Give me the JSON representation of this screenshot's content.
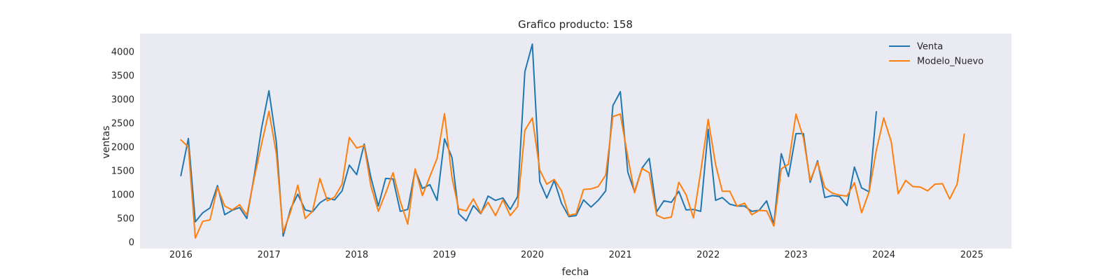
{
  "chart_data": {
    "type": "line",
    "title": "Grafico producto: 158",
    "xlabel": "fecha",
    "ylabel": "ventas",
    "xlim": [
      "2015-07-15",
      "2025-06-15"
    ],
    "ylim": [
      -130,
      4380
    ],
    "x_ticks": [
      "2016",
      "2017",
      "2018",
      "2019",
      "2020",
      "2021",
      "2022",
      "2023",
      "2024",
      "2025"
    ],
    "y_ticks": [
      0,
      500,
      1000,
      1500,
      2000,
      2500,
      3000,
      3500,
      4000
    ],
    "grid": false,
    "legend_position": "top-right",
    "background": "#eaeaf2",
    "series": [
      {
        "name": "Venta",
        "color": "#1f77b4",
        "start": "2016-01",
        "values": [
          1400,
          2180,
          430,
          620,
          720,
          1190,
          580,
          670,
          730,
          500,
          1400,
          2380,
          3180,
          2100,
          130,
          700,
          1010,
          680,
          640,
          830,
          930,
          890,
          1080,
          1620,
          1420,
          2060,
          1360,
          760,
          1340,
          1330,
          650,
          690,
          1520,
          1130,
          1210,
          880,
          2170,
          1780,
          600,
          450,
          770,
          600,
          970,
          880,
          930,
          690,
          960,
          3580,
          4160,
          1270,
          930,
          1300,
          820,
          540,
          560,
          890,
          740,
          880,
          1080,
          2870,
          3160,
          1470,
          1060,
          1560,
          1760,
          640,
          870,
          840,
          1070,
          680,
          690,
          650,
          2370,
          880,
          940,
          800,
          760,
          760,
          650,
          670,
          870,
          380,
          1860,
          1380,
          2280,
          2280,
          1260,
          1710,
          940,
          980,
          960,
          770,
          1580,
          1140,
          1060,
          2740
        ]
      },
      {
        "name": "Modelo_Nuevo",
        "color": "#ff7f0e",
        "start": "2016-01",
        "values": [
          2150,
          2000,
          90,
          440,
          470,
          1150,
          760,
          680,
          790,
          570,
          1350,
          2050,
          2750,
          1860,
          210,
          640,
          1200,
          500,
          650,
          1340,
          870,
          950,
          1220,
          2200,
          1980,
          2030,
          1180,
          650,
          1030,
          1460,
          860,
          380,
          1540,
          980,
          1380,
          1760,
          2700,
          1360,
          700,
          660,
          910,
          610,
          840,
          560,
          890,
          560,
          750,
          2350,
          2610,
          1520,
          1220,
          1320,
          1080,
          560,
          600,
          1110,
          1120,
          1170,
          1410,
          2640,
          2690,
          1790,
          1040,
          1550,
          1460,
          570,
          500,
          530,
          1260,
          1000,
          510,
          1480,
          2580,
          1630,
          1070,
          1070,
          760,
          820,
          580,
          670,
          660,
          340,
          1540,
          1640,
          2690,
          2190,
          1300,
          1680,
          1150,
          1030,
          990,
          970,
          1250,
          620,
          1060,
          1930,
          2610,
          2110,
          1020,
          1300,
          1170,
          1160,
          1080,
          1220,
          1230,
          910,
          1220,
          2270
        ]
      }
    ]
  }
}
